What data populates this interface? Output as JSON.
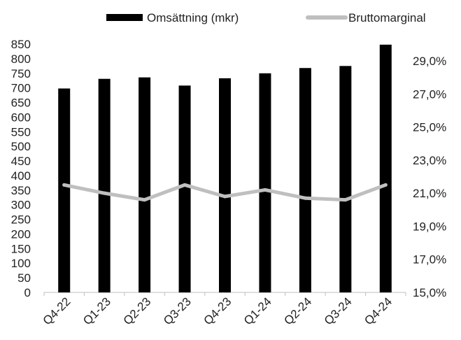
{
  "chart_data": {
    "type": "bar",
    "categories": [
      "Q4-22",
      "Q1-23",
      "Q2-23",
      "Q3-23",
      "Q4-23",
      "Q1-24",
      "Q2-24",
      "Q3-24",
      "Q4-24"
    ],
    "series": [
      {
        "name": "Omsättning (mkr)",
        "type": "bar",
        "axis": "left",
        "color": "#000000",
        "values": [
          698,
          731,
          736,
          708,
          733,
          750,
          768,
          775,
          848
        ]
      },
      {
        "name": "Bruttomarginal",
        "type": "line",
        "axis": "right",
        "color": "#bfbfbf",
        "values": [
          21.5,
          21.0,
          20.6,
          21.5,
          20.8,
          21.2,
          20.7,
          20.6,
          21.5
        ]
      }
    ],
    "y_left": {
      "ylim": [
        0,
        850
      ],
      "ticks": [
        "0",
        "50",
        "100",
        "150",
        "200",
        "250",
        "300",
        "350",
        "400",
        "450",
        "500",
        "550",
        "600",
        "650",
        "700",
        "750",
        "800",
        "850"
      ]
    },
    "y_right": {
      "ylim": [
        15.0,
        30.4
      ],
      "ticks": [
        "15,0%",
        "17,0%",
        "19,0%",
        "21,0%",
        "23,0%",
        "25,0%",
        "27,0%",
        "29,0%"
      ]
    },
    "legend": {
      "placement": "top"
    },
    "grid": false
  }
}
